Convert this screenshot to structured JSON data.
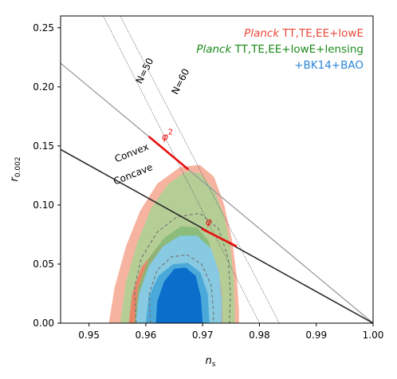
{
  "chart_data": {
    "type": "contour",
    "xlabel_main": "n",
    "xlabel_sub": "s",
    "ylabel_main": "r",
    "ylabel_sub": "0.002",
    "xlim": [
      0.945,
      1.0
    ],
    "ylim": [
      0.0,
      0.26
    ],
    "x_ticks": [
      0.95,
      0.96,
      0.97,
      0.98,
      0.99,
      1.0
    ],
    "x_tick_labels": [
      "0.95",
      "0.96",
      "0.97",
      "0.98",
      "0.99",
      "1.00"
    ],
    "y_ticks": [
      0.0,
      0.05,
      0.1,
      0.15,
      0.2,
      0.25
    ],
    "y_tick_labels": [
      "0.00",
      "0.05",
      "0.10",
      "0.15",
      "0.20",
      "0.25"
    ],
    "legend": [
      {
        "italic": "Planck",
        "text": " TT,TE,EE+lowE",
        "color": "#e8483a"
      },
      {
        "italic": "Planck",
        "text": " TT,TE,EE+lowE+lensing",
        "color": "#1a8a1a"
      },
      {
        "italic": "",
        "text": "+BK14+BAO",
        "color": "#2a86d8"
      }
    ],
    "colors": {
      "red_outer": "#f4a78f",
      "red_inner": "#ef7d62",
      "green_outer": "#a9d294",
      "green_inner": "#84b877",
      "blue_outer": "#86cbe8",
      "blue_inner": "#48a6d8",
      "blue_core": "#0b6ecb",
      "dashed": "#777777",
      "model": "#e8100e"
    },
    "contours": {
      "red_outer": [
        [
          0.9535,
          0.0
        ],
        [
          0.9545,
          0.03
        ],
        [
          0.9565,
          0.065
        ],
        [
          0.959,
          0.095
        ],
        [
          0.962,
          0.118
        ],
        [
          0.966,
          0.132
        ],
        [
          0.9695,
          0.134
        ],
        [
          0.972,
          0.124
        ],
        [
          0.9738,
          0.1
        ],
        [
          0.9752,
          0.07
        ],
        [
          0.976,
          0.04
        ],
        [
          0.9764,
          0.01
        ],
        [
          0.9764,
          0.0
        ]
      ],
      "green_outer": [
        [
          0.9555,
          0.0
        ],
        [
          0.9565,
          0.035
        ],
        [
          0.9585,
          0.068
        ],
        [
          0.961,
          0.098
        ],
        [
          0.964,
          0.118
        ],
        [
          0.967,
          0.128
        ],
        [
          0.9695,
          0.127
        ],
        [
          0.972,
          0.113
        ],
        [
          0.9738,
          0.09
        ],
        [
          0.9749,
          0.065
        ],
        [
          0.9755,
          0.035
        ],
        [
          0.9757,
          0.0
        ]
      ],
      "red_inner": [
        [
          0.957,
          0.0
        ],
        [
          0.9576,
          0.025
        ],
        [
          0.9592,
          0.047
        ],
        [
          0.962,
          0.064
        ],
        [
          0.9655,
          0.072
        ],
        [
          0.969,
          0.07
        ],
        [
          0.9715,
          0.062
        ],
        [
          0.9728,
          0.045
        ],
        [
          0.9734,
          0.025
        ],
        [
          0.9735,
          0.0
        ]
      ],
      "green_inner": [
        [
          0.958,
          0.0
        ],
        [
          0.9586,
          0.03
        ],
        [
          0.9605,
          0.055
        ],
        [
          0.9632,
          0.072
        ],
        [
          0.9662,
          0.082
        ],
        [
          0.969,
          0.081
        ],
        [
          0.971,
          0.07
        ],
        [
          0.9722,
          0.05
        ],
        [
          0.9727,
          0.025
        ],
        [
          0.9728,
          0.0
        ]
      ],
      "blue_outer": [
        [
          0.9582,
          0.0
        ],
        [
          0.9588,
          0.025
        ],
        [
          0.9605,
          0.048
        ],
        [
          0.963,
          0.065
        ],
        [
          0.966,
          0.074
        ],
        [
          0.969,
          0.074
        ],
        [
          0.9715,
          0.063
        ],
        [
          0.9729,
          0.043
        ],
        [
          0.9734,
          0.02
        ],
        [
          0.9734,
          0.0
        ]
      ],
      "blue_inner": [
        [
          0.96,
          0.0
        ],
        [
          0.9605,
          0.022
        ],
        [
          0.9622,
          0.04
        ],
        [
          0.9648,
          0.05
        ],
        [
          0.9674,
          0.051
        ],
        [
          0.9696,
          0.043
        ],
        [
          0.9709,
          0.025
        ],
        [
          0.9712,
          0.0
        ]
      ],
      "blue_core": [
        [
          0.9618,
          0.0
        ],
        [
          0.962,
          0.018
        ],
        [
          0.9632,
          0.035
        ],
        [
          0.965,
          0.046
        ],
        [
          0.967,
          0.047
        ],
        [
          0.9688,
          0.04
        ],
        [
          0.9697,
          0.022
        ],
        [
          0.97,
          0.0
        ]
      ],
      "dashed_outer": [
        [
          0.9583,
          0.0
        ],
        [
          0.958,
          0.03
        ],
        [
          0.9592,
          0.055
        ],
        [
          0.962,
          0.077
        ],
        [
          0.9655,
          0.09
        ],
        [
          0.9695,
          0.093
        ],
        [
          0.9728,
          0.08
        ],
        [
          0.9745,
          0.055
        ],
        [
          0.9749,
          0.025
        ],
        [
          0.9747,
          0.0
        ]
      ],
      "dashed_inner": [
        [
          0.9608,
          0.0
        ],
        [
          0.9606,
          0.025
        ],
        [
          0.962,
          0.045
        ],
        [
          0.9645,
          0.056
        ],
        [
          0.9672,
          0.058
        ],
        [
          0.9698,
          0.05
        ],
        [
          0.9715,
          0.032
        ],
        [
          0.9719,
          0.01
        ],
        [
          0.9719,
          0.0
        ]
      ]
    },
    "lines": {
      "convex_concave": [
        [
          0.945,
          0.147
        ],
        [
          1.0,
          0.0
        ]
      ],
      "phi2_gray": [
        [
          0.945,
          0.22
        ],
        [
          1.0,
          0.0
        ]
      ],
      "N50": [
        [
          0.9525,
          0.26
        ],
        [
          0.98,
          0.0
        ]
      ],
      "N60": [
        [
          0.9555,
          0.26
        ],
        [
          0.9835,
          0.0
        ]
      ],
      "phi2_segment": [
        [
          0.9605,
          0.158
        ],
        [
          0.9675,
          0.13
        ]
      ],
      "phi_segment": [
        [
          0.9698,
          0.08
        ],
        [
          0.976,
          0.065
        ]
      ]
    },
    "annotations": [
      {
        "text": "N=60",
        "x": 0.9655,
        "y": 0.193,
        "angle": -63
      },
      {
        "text": "N=50",
        "x": 0.9592,
        "y": 0.202,
        "angle": -63
      },
      {
        "text": "Convex",
        "x": 0.9548,
        "y": 0.136,
        "angle": -22
      },
      {
        "text": "Concave",
        "x": 0.9546,
        "y": 0.117,
        "angle": -22
      },
      {
        "text": "φ",
        "x": 0.9628,
        "y": 0.155,
        "sup": "2"
      },
      {
        "text": "φ",
        "x": 0.9705,
        "y": 0.083,
        "sup": ""
      }
    ]
  }
}
